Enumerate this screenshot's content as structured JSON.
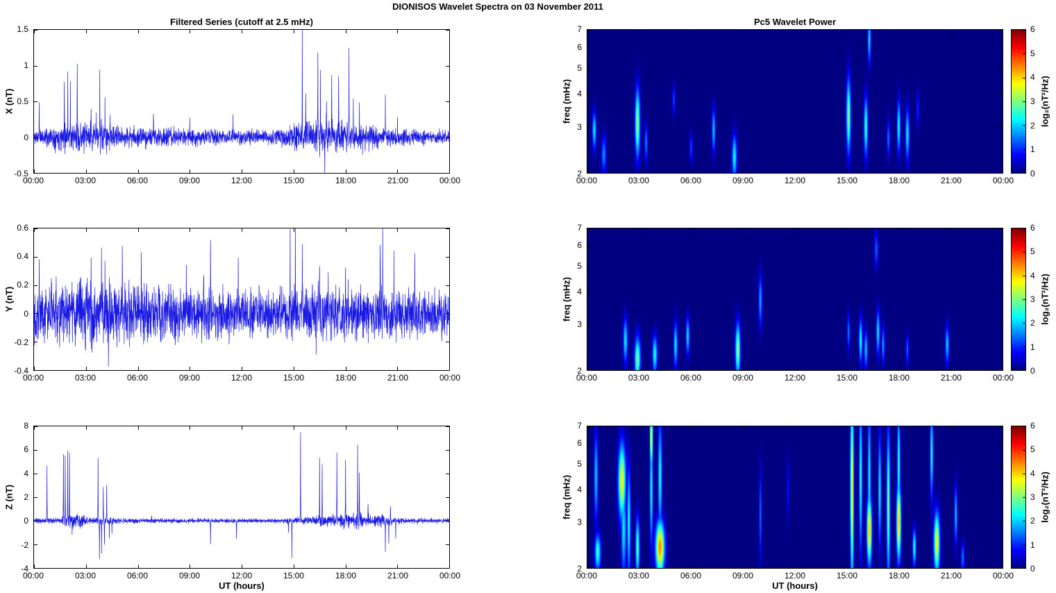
{
  "titles": {
    "main": "DIONISOS Wavelet Spectra on 03 November  2011",
    "left_column": "Filtered Series (cutoff at 2.5 mHz)",
    "right_column": "Pc5 Wavelet Power"
  },
  "xlabel": "UT (hours)",
  "colors": {
    "line": "#0000e0",
    "axis": "#000000",
    "heat_background": "#000080",
    "page_background": "#ffffff"
  },
  "time_axis": {
    "range_hours": [
      0,
      24
    ],
    "tick_hours": [
      0,
      3,
      6,
      9,
      12,
      15,
      18,
      21,
      24
    ],
    "tick_labels": [
      "00:00",
      "03:00",
      "06:00",
      "09:00",
      "12:00",
      "15:00",
      "18:00",
      "21:00",
      "00:00"
    ]
  },
  "colorbar": {
    "label": "log₂(nT²/Hz)",
    "colormap": "jet",
    "clim": [
      0,
      6
    ],
    "tick_vals": [
      0,
      1,
      2,
      3,
      4,
      5,
      6
    ],
    "tick_labels": [
      "0",
      "1",
      "2",
      "3",
      "4",
      "5",
      "6"
    ]
  },
  "chart_data": [
    {
      "type": "line",
      "name": "X component filtered series",
      "ylabel": "X (nT)",
      "ylim": [
        -0.5,
        1.5
      ],
      "ytick_vals": [
        1.5,
        1,
        0.5,
        0,
        -0.5
      ],
      "ytick_labels": [
        "1.5",
        "1",
        "0.5",
        "0",
        "-0.5"
      ],
      "seed": 11,
      "noise_envelope": [
        [
          0,
          0.055
        ],
        [
          1,
          0.07
        ],
        [
          1.5,
          0.09
        ],
        [
          2.5,
          0.1
        ],
        [
          3,
          0.09
        ],
        [
          4,
          0.1
        ],
        [
          4.5,
          0.08
        ],
        [
          5,
          0.07
        ],
        [
          9,
          0.06
        ],
        [
          12,
          0.05
        ],
        [
          14,
          0.05
        ],
        [
          15,
          0.08
        ],
        [
          15.5,
          0.1
        ],
        [
          16.5,
          0.13
        ],
        [
          17,
          0.11
        ],
        [
          18,
          0.1
        ],
        [
          19,
          0.09
        ],
        [
          20,
          0.07
        ],
        [
          21,
          0.06
        ],
        [
          22,
          0.05
        ],
        [
          24,
          0.045
        ]
      ],
      "spikes": [
        [
          0.3,
          0.55
        ],
        [
          1.75,
          0.9
        ],
        [
          1.95,
          0.85
        ],
        [
          2.1,
          0.87
        ],
        [
          2.5,
          1.0
        ],
        [
          3.3,
          0.45
        ],
        [
          3.6,
          0.4
        ],
        [
          3.8,
          0.9
        ],
        [
          4.1,
          0.42
        ],
        [
          4.4,
          0.38
        ],
        [
          6.9,
          0.3
        ],
        [
          9.0,
          0.28
        ],
        [
          11.5,
          0.25
        ],
        [
          15.5,
          1.45
        ],
        [
          15.7,
          0.5
        ],
        [
          16.4,
          1.05
        ],
        [
          16.55,
          0.8
        ],
        [
          16.8,
          -0.45
        ],
        [
          16.9,
          0.6
        ],
        [
          17.2,
          1.05
        ],
        [
          17.6,
          1.0
        ],
        [
          18.2,
          1.08
        ],
        [
          18.45,
          0.45
        ],
        [
          18.8,
          0.45
        ],
        [
          20.3,
          0.55
        ],
        [
          21.0,
          0.35
        ]
      ]
    },
    {
      "type": "line",
      "name": "Y component filtered series",
      "ylabel": "Y (nT)",
      "ylim": [
        -0.4,
        0.6
      ],
      "ytick_vals": [
        0.6,
        0.4,
        0.2,
        0,
        -0.2,
        -0.4
      ],
      "ytick_labels": [
        "0.6",
        "0.4",
        "0.2",
        "0",
        "-0.2",
        "-0.4"
      ],
      "seed": 22,
      "noise_envelope": [
        [
          0,
          0.09
        ],
        [
          2,
          0.1
        ],
        [
          3,
          0.11
        ],
        [
          5,
          0.1
        ],
        [
          8,
          0.09
        ],
        [
          10,
          0.09
        ],
        [
          11,
          0.08
        ],
        [
          13,
          0.07
        ],
        [
          14,
          0.08
        ],
        [
          15,
          0.09
        ],
        [
          16,
          0.1
        ],
        [
          17,
          0.1
        ],
        [
          19,
          0.09
        ],
        [
          21,
          0.08
        ],
        [
          24,
          0.08
        ]
      ],
      "spikes": [
        [
          0.3,
          0.35
        ],
        [
          1.0,
          0.25
        ],
        [
          2.3,
          0.33
        ],
        [
          3.3,
          0.3
        ],
        [
          3.9,
          0.42
        ],
        [
          4.1,
          0.38
        ],
        [
          4.3,
          -0.37
        ],
        [
          5.1,
          0.3
        ],
        [
          6.2,
          0.25
        ],
        [
          7.2,
          0.25
        ],
        [
          8.8,
          0.28
        ],
        [
          9.8,
          0.3
        ],
        [
          10.2,
          0.55
        ],
        [
          11.8,
          0.28
        ],
        [
          13.0,
          0.22
        ],
        [
          14.8,
          0.46
        ],
        [
          15.1,
          0.45
        ],
        [
          15.5,
          0.46
        ],
        [
          16.3,
          -0.33
        ],
        [
          16.5,
          0.4
        ],
        [
          17.0,
          0.35
        ],
        [
          18.0,
          0.3
        ],
        [
          20.0,
          0.5
        ],
        [
          20.15,
          0.52
        ],
        [
          20.8,
          0.3
        ],
        [
          22.0,
          0.3
        ]
      ]
    },
    {
      "type": "line",
      "name": "Z component filtered series",
      "ylabel": "Z (nT)",
      "ylim": [
        -4,
        8
      ],
      "ytick_vals": [
        8,
        6,
        4,
        2,
        0,
        -2,
        -4
      ],
      "ytick_labels": [
        "8",
        "6",
        "4",
        "2",
        "0",
        "-2",
        "-4"
      ],
      "seed": 33,
      "noise_envelope": [
        [
          0,
          0.08
        ],
        [
          1.5,
          0.1
        ],
        [
          2,
          0.3
        ],
        [
          2.3,
          0.35
        ],
        [
          2.8,
          0.3
        ],
        [
          3,
          0.15
        ],
        [
          3.5,
          0.12
        ],
        [
          4.5,
          0.15
        ],
        [
          5,
          0.08
        ],
        [
          9,
          0.06
        ],
        [
          14,
          0.06
        ],
        [
          15,
          0.1
        ],
        [
          16,
          0.15
        ],
        [
          16.5,
          0.3
        ],
        [
          17,
          0.25
        ],
        [
          18,
          0.3
        ],
        [
          18.5,
          0.35
        ],
        [
          19,
          0.3
        ],
        [
          19.5,
          0.2
        ],
        [
          20,
          0.25
        ],
        [
          20.8,
          0.15
        ],
        [
          21.5,
          0.08
        ],
        [
          24,
          0.06
        ]
      ],
      "spikes": [
        [
          0.75,
          4.7
        ],
        [
          1.7,
          5.2
        ],
        [
          1.8,
          5.5
        ],
        [
          1.95,
          5.7
        ],
        [
          2.05,
          5.8
        ],
        [
          2.2,
          -1.1
        ],
        [
          3.7,
          5.3
        ],
        [
          3.78,
          -3.3
        ],
        [
          3.9,
          -2.8
        ],
        [
          4.0,
          3.0
        ],
        [
          4.07,
          -2.0
        ],
        [
          4.2,
          2.9
        ],
        [
          4.35,
          -1.5
        ],
        [
          4.5,
          -1.0
        ],
        [
          6.8,
          0.5
        ],
        [
          10.2,
          -2.0
        ],
        [
          11.7,
          -1.5
        ],
        [
          14.7,
          -0.9
        ],
        [
          14.9,
          -3.2
        ],
        [
          15.4,
          7.5
        ],
        [
          16.5,
          5.2
        ],
        [
          16.65,
          4.9
        ],
        [
          17.5,
          5.5
        ],
        [
          18.0,
          5.5
        ],
        [
          18.7,
          5.9
        ],
        [
          18.8,
          4.2
        ],
        [
          19.3,
          1.0
        ],
        [
          20.3,
          -2.6
        ],
        [
          20.5,
          -1.8
        ],
        [
          20.6,
          1.2
        ],
        [
          20.9,
          -1.3
        ]
      ]
    },
    {
      "type": "heatmap",
      "name": "X component Pc5 wavelet power",
      "ylabel": "freq (mHz)",
      "ylim": [
        2,
        7
      ],
      "yscale": "log",
      "ytick_vals": [
        7,
        6,
        5,
        4,
        3,
        2
      ],
      "ytick_labels": [
        "7",
        "6",
        "5",
        "4",
        "3",
        "2"
      ],
      "clim": [
        0,
        6
      ],
      "blobs": [
        [
          0.4,
          2.9,
          2.2,
          0.08,
          0.05
        ],
        [
          0.95,
          2.35,
          1.6,
          0.1,
          0.05
        ],
        [
          2.9,
          3.1,
          3.2,
          0.1,
          0.09
        ],
        [
          3.4,
          2.6,
          1.6,
          0.06,
          0.05
        ],
        [
          5.0,
          3.8,
          1.2,
          0.06,
          0.04
        ],
        [
          6.0,
          2.5,
          1.2,
          0.06,
          0.04
        ],
        [
          7.3,
          2.9,
          2.0,
          0.07,
          0.06
        ],
        [
          8.5,
          2.3,
          2.3,
          0.1,
          0.06
        ],
        [
          15.1,
          3.3,
          3.0,
          0.09,
          0.1
        ],
        [
          16.1,
          3.0,
          2.6,
          0.08,
          0.08
        ],
        [
          16.3,
          6.4,
          2.2,
          0.06,
          0.06
        ],
        [
          17.4,
          2.7,
          1.5,
          0.06,
          0.05
        ],
        [
          18.0,
          3.0,
          2.4,
          0.07,
          0.07
        ],
        [
          18.5,
          2.8,
          2.2,
          0.08,
          0.07
        ],
        [
          19.1,
          3.5,
          1.0,
          0.06,
          0.05
        ]
      ]
    },
    {
      "type": "heatmap",
      "name": "Y component Pc5 wavelet power",
      "ylabel": "freq (mHz)",
      "ylim": [
        2,
        7
      ],
      "yscale": "log",
      "ytick_vals": [
        7,
        6,
        5,
        4,
        3,
        2
      ],
      "ytick_labels": [
        "7",
        "6",
        "5",
        "4",
        "3",
        "2"
      ],
      "clim": [
        0,
        6
      ],
      "blobs": [
        [
          2.2,
          2.6,
          2.2,
          0.09,
          0.06
        ],
        [
          2.9,
          2.2,
          3.0,
          0.12,
          0.06
        ],
        [
          3.9,
          2.3,
          2.4,
          0.1,
          0.05
        ],
        [
          5.1,
          2.5,
          2.2,
          0.08,
          0.06
        ],
        [
          5.8,
          2.7,
          2.2,
          0.07,
          0.05
        ],
        [
          8.7,
          2.4,
          3.2,
          0.1,
          0.07
        ],
        [
          10.0,
          3.7,
          1.8,
          0.07,
          0.07
        ],
        [
          15.1,
          2.8,
          1.5,
          0.06,
          0.05
        ],
        [
          15.8,
          2.6,
          2.4,
          0.07,
          0.06
        ],
        [
          16.1,
          2.4,
          2.0,
          0.07,
          0.05
        ],
        [
          16.7,
          5.8,
          1.4,
          0.07,
          0.05
        ],
        [
          16.8,
          2.8,
          2.2,
          0.07,
          0.06
        ],
        [
          17.1,
          2.5,
          1.8,
          0.06,
          0.05
        ],
        [
          18.5,
          2.4,
          1.4,
          0.06,
          0.04
        ],
        [
          20.8,
          2.5,
          2.0,
          0.08,
          0.05
        ]
      ]
    },
    {
      "type": "heatmap",
      "name": "Z component Pc5 wavelet power",
      "ylabel": "freq (mHz)",
      "ylim": [
        2,
        7
      ],
      "yscale": "log",
      "ytick_vals": [
        7,
        6,
        5,
        4,
        3,
        2
      ],
      "ytick_labels": [
        "7",
        "6",
        "5",
        "4",
        "3",
        "2"
      ],
      "clim": [
        0,
        6
      ],
      "blobs": [
        [
          0.5,
          4.5,
          2.0,
          0.08,
          0.12
        ],
        [
          0.6,
          2.3,
          2.6,
          0.12,
          0.05
        ],
        [
          2.0,
          4.3,
          3.8,
          0.15,
          0.1
        ],
        [
          2.1,
          2.8,
          2.2,
          0.1,
          0.12
        ],
        [
          2.4,
          3.0,
          2.4,
          0.07,
          0.15
        ],
        [
          2.9,
          2.4,
          2.8,
          0.08,
          0.08
        ],
        [
          3.7,
          6.3,
          4.0,
          0.06,
          0.08
        ],
        [
          3.7,
          4.0,
          2.5,
          0.06,
          0.15
        ],
        [
          4.2,
          2.4,
          4.5,
          0.18,
          0.07
        ],
        [
          4.2,
          4.5,
          2.4,
          0.08,
          0.15
        ],
        [
          10.0,
          3.2,
          1.5,
          0.05,
          0.12
        ],
        [
          11.6,
          4.0,
          0.9,
          0.05,
          0.08
        ],
        [
          15.3,
          4.0,
          4.0,
          0.07,
          0.25
        ],
        [
          15.8,
          4.5,
          2.6,
          0.06,
          0.2
        ],
        [
          16.3,
          2.8,
          4.2,
          0.1,
          0.09
        ],
        [
          16.3,
          4.5,
          2.4,
          0.06,
          0.18
        ],
        [
          16.9,
          4.0,
          2.3,
          0.06,
          0.15
        ],
        [
          17.4,
          3.5,
          3.0,
          0.07,
          0.2
        ],
        [
          18.0,
          3.0,
          4.2,
          0.09,
          0.1
        ],
        [
          18.0,
          5.0,
          2.6,
          0.06,
          0.15
        ],
        [
          18.9,
          2.4,
          2.5,
          0.07,
          0.05
        ],
        [
          19.9,
          5.5,
          2.5,
          0.06,
          0.12
        ],
        [
          20.2,
          2.5,
          3.8,
          0.12,
          0.08
        ],
        [
          21.3,
          3.2,
          2.0,
          0.06,
          0.08
        ],
        [
          21.7,
          2.2,
          1.5,
          0.07,
          0.04
        ]
      ]
    }
  ]
}
